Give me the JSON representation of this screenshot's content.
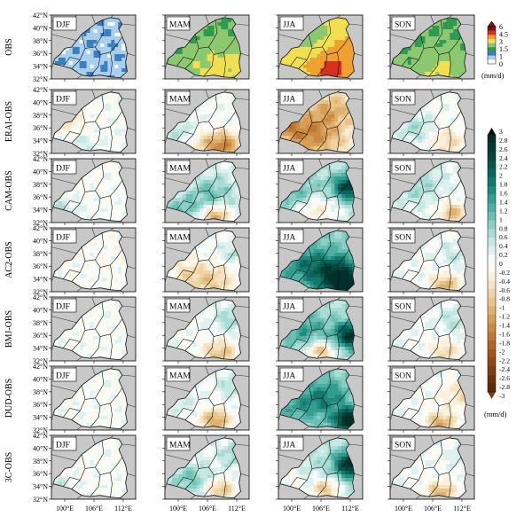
{
  "seasons": [
    "DJF",
    "MAM",
    "JJA",
    "SON"
  ],
  "rows": [
    {
      "label": "OBS",
      "cells": [
        "obs_djf",
        "obs_mam",
        "obs_jja",
        "obs_son"
      ]
    },
    {
      "label": "ERAI-OBS",
      "cells": [
        "era_djf",
        "era_mam",
        "era_jja",
        "era_son"
      ]
    },
    {
      "label": "CAM-OBS",
      "cells": [
        "cam_djf",
        "cam_mam",
        "cam_jja",
        "cam_son"
      ]
    },
    {
      "label": "AC2-OBS",
      "cells": [
        "ac2_djf",
        "ac2_mam",
        "ac2_jja",
        "ac2_son"
      ]
    },
    {
      "label": "BMJ-OBS",
      "cells": [
        "bmj_djf",
        "bmj_mam",
        "bmj_jja",
        "bmj_son"
      ]
    },
    {
      "label": "DUD-OBS",
      "cells": [
        "dud_djf",
        "dud_mam",
        "dud_jja",
        "dud_son"
      ]
    },
    {
      "label": "3C-OBS",
      "cells": [
        "c3_djf",
        "c3_mam",
        "c3_jja",
        "c3_son"
      ]
    }
  ],
  "lat_ticks": [
    "42°N",
    "40°N",
    "38°N",
    "36°N",
    "34°N",
    "32°N"
  ],
  "lon_ticks": [
    "100°E",
    "106°E",
    "112°E"
  ],
  "obs_colorbar": {
    "labels": [
      "6",
      "4.5",
      "3",
      "1.5",
      "1",
      "0"
    ],
    "unit": "(mm/d)",
    "colors": [
      "#7a1010",
      "#d7301f",
      "#f0a030",
      "#f0e050",
      "#8cc870",
      "#2e9a52",
      "#3b7fc0",
      "#a8d0ee",
      "#ffffff"
    ]
  },
  "diff_colorbar": {
    "labels": [
      "3",
      "2.8",
      "2.6",
      "2.4",
      "2.2",
      "2",
      "1.8",
      "1.6",
      "1.4",
      "1.2",
      "1",
      "0.8",
      "0.6",
      "0.4",
      "0.2",
      "0",
      "-0.2",
      "-0.4",
      "-0.6",
      "-0.8",
      "-1",
      "-1.2",
      "-1.4",
      "-1.6",
      "-1.8",
      "-2",
      "-2.2",
      "-2.4",
      "-2.6",
      "-2.8",
      "-3"
    ],
    "unit": "(mm/d)",
    "pos_colors": [
      "#f7fcfa",
      "#dff1ee",
      "#c6e8e2",
      "#a8dcd4",
      "#8acfc5",
      "#6bbfb4",
      "#4eafa2",
      "#339d90",
      "#1f8a7e",
      "#12786c",
      "#0a665b",
      "#06564c",
      "#03463e",
      "#013a33",
      "#002f29"
    ],
    "neg_colors": [
      "#fdfaf2",
      "#faf0dc",
      "#f5e3c2",
      "#efd4a6",
      "#e8c38a",
      "#e0b06e",
      "#d69d56",
      "#cb8a42",
      "#bf7832",
      "#b06726",
      "#9f571c",
      "#8e4a15",
      "#7d3e10",
      "#6c330b",
      "#5c2a08"
    ],
    "arrow_top_color": "#0b0b0b",
    "arrow_bottom_color": "#7a3a0c"
  },
  "fields": {
    "obs_djf": {
      "scale": "obs",
      "base": 0.5,
      "blobs": []
    },
    "obs_mam": {
      "scale": "obs",
      "base": 1.5,
      "blobs": [
        [
          0.55,
          0.88,
          0.25,
          0.8
        ],
        [
          0.85,
          0.7,
          0.2,
          0.6
        ]
      ]
    },
    "obs_jja": {
      "scale": "obs",
      "base": 2.8,
      "blobs": [
        [
          0.62,
          0.85,
          0.14,
          2.5
        ],
        [
          0.35,
          0.25,
          0.2,
          -1.2
        ],
        [
          0.85,
          0.55,
          0.18,
          0.8
        ]
      ]
    },
    "obs_son": {
      "scale": "obs",
      "base": 1.5,
      "blobs": [
        [
          0.6,
          0.85,
          0.2,
          0.9
        ]
      ]
    },
    "era_djf": {
      "scale": "diff",
      "base": 0.1,
      "blobs": [
        [
          0.2,
          0.55,
          0.18,
          -0.5
        ],
        [
          0.3,
          0.85,
          0.15,
          0.4
        ]
      ]
    },
    "era_mam": {
      "scale": "diff",
      "base": 0.1,
      "blobs": [
        [
          0.7,
          0.88,
          0.15,
          -1.5
        ],
        [
          0.45,
          0.85,
          0.15,
          -0.6
        ],
        [
          0.2,
          0.7,
          0.15,
          0.5
        ]
      ]
    },
    "era_jja": {
      "scale": "diff",
      "base": -0.2,
      "blobs": [
        [
          0.4,
          0.7,
          0.25,
          -1.3
        ],
        [
          0.65,
          0.3,
          0.18,
          -0.8
        ],
        [
          0.1,
          0.6,
          0.12,
          -0.8
        ]
      ]
    },
    "era_son": {
      "scale": "diff",
      "base": 0.1,
      "blobs": [
        [
          0.7,
          0.8,
          0.15,
          -0.7
        ],
        [
          0.3,
          0.6,
          0.15,
          0.6
        ]
      ]
    },
    "cam_djf": {
      "scale": "diff",
      "base": 0.05,
      "blobs": [
        [
          0.1,
          0.85,
          0.15,
          0.6
        ]
      ]
    },
    "cam_mam": {
      "scale": "diff",
      "base": 0.2,
      "blobs": [
        [
          0.55,
          0.55,
          0.2,
          0.9
        ],
        [
          0.6,
          0.9,
          0.12,
          -1.5
        ],
        [
          0.2,
          0.8,
          0.15,
          0.8
        ]
      ]
    },
    "cam_jja": {
      "scale": "diff",
      "base": 0.5,
      "blobs": [
        [
          0.85,
          0.45,
          0.15,
          2.2
        ],
        [
          0.45,
          0.8,
          0.2,
          -0.9
        ],
        [
          0.2,
          0.5,
          0.2,
          0.9
        ]
      ]
    },
    "cam_son": {
      "scale": "diff",
      "base": 0.2,
      "blobs": [
        [
          0.75,
          0.85,
          0.12,
          -1.2
        ],
        [
          0.3,
          0.4,
          0.2,
          0.6
        ]
      ]
    },
    "ac2_djf": {
      "scale": "diff",
      "base": 0.0,
      "blobs": []
    },
    "ac2_mam": {
      "scale": "diff",
      "base": 0.1,
      "blobs": [
        [
          0.55,
          0.85,
          0.2,
          -0.9
        ],
        [
          0.85,
          0.4,
          0.12,
          0.6
        ],
        [
          0.25,
          0.7,
          0.15,
          -0.5
        ]
      ]
    },
    "ac2_jja": {
      "scale": "diff",
      "base": 0.9,
      "blobs": [
        [
          0.7,
          0.75,
          0.2,
          2.0
        ],
        [
          0.85,
          0.95,
          0.1,
          2.5
        ],
        [
          0.3,
          0.55,
          0.2,
          0.8
        ]
      ]
    },
    "ac2_son": {
      "scale": "diff",
      "base": 0.1,
      "blobs": [
        [
          0.65,
          0.9,
          0.12,
          -1.2
        ],
        [
          0.8,
          0.4,
          0.15,
          0.4
        ]
      ]
    },
    "bmj_djf": {
      "scale": "diff",
      "base": 0.05,
      "blobs": []
    },
    "bmj_mam": {
      "scale": "diff",
      "base": 0.1,
      "blobs": [
        [
          0.65,
          0.88,
          0.15,
          -1.0
        ],
        [
          0.8,
          0.35,
          0.15,
          0.7
        ]
      ]
    },
    "bmj_jja": {
      "scale": "diff",
      "base": 0.6,
      "blobs": [
        [
          0.5,
          0.85,
          0.12,
          -1.6
        ],
        [
          0.88,
          0.6,
          0.15,
          2.3
        ],
        [
          0.3,
          0.5,
          0.2,
          0.9
        ]
      ]
    },
    "bmj_son": {
      "scale": "diff",
      "base": 0.1,
      "blobs": [
        [
          0.65,
          0.85,
          0.12,
          -0.8
        ],
        [
          0.8,
          0.35,
          0.15,
          0.5
        ]
      ]
    },
    "dud_djf": {
      "scale": "diff",
      "base": 0.05,
      "blobs": []
    },
    "dud_mam": {
      "scale": "diff",
      "base": 0.1,
      "blobs": [
        [
          0.6,
          0.85,
          0.12,
          -1.4
        ],
        [
          0.8,
          0.3,
          0.12,
          0.6
        ],
        [
          0.15,
          0.5,
          0.15,
          0.4
        ]
      ]
    },
    "dud_jja": {
      "scale": "diff",
      "base": 0.8,
      "blobs": [
        [
          0.85,
          0.85,
          0.12,
          2.6
        ],
        [
          0.55,
          0.5,
          0.2,
          0.9
        ],
        [
          0.2,
          0.6,
          0.2,
          0.5
        ]
      ]
    },
    "dud_son": {
      "scale": "diff",
      "base": 0.1,
      "blobs": [
        [
          0.6,
          0.9,
          0.12,
          -1.3
        ],
        [
          0.8,
          0.45,
          0.15,
          -0.6
        ]
      ]
    },
    "c3_djf": {
      "scale": "diff",
      "base": 0.05,
      "blobs": [
        [
          0.1,
          0.8,
          0.12,
          0.4
        ]
      ]
    },
    "c3_mam": {
      "scale": "diff",
      "base": 0.2,
      "blobs": [
        [
          0.65,
          0.85,
          0.12,
          -1.2
        ],
        [
          0.3,
          0.7,
          0.18,
          0.8
        ],
        [
          0.85,
          0.3,
          0.12,
          0.7
        ]
      ]
    },
    "c3_jja": {
      "scale": "diff",
      "base": 0.5,
      "blobs": [
        [
          0.88,
          0.45,
          0.15,
          2.6
        ],
        [
          0.55,
          0.85,
          0.12,
          -1.4
        ],
        [
          0.15,
          0.7,
          0.12,
          -0.6
        ]
      ]
    },
    "c3_son": {
      "scale": "diff",
      "base": 0.1,
      "blobs": [
        [
          0.6,
          0.9,
          0.12,
          -1.2
        ],
        [
          0.85,
          0.3,
          0.1,
          0.5
        ]
      ]
    }
  }
}
